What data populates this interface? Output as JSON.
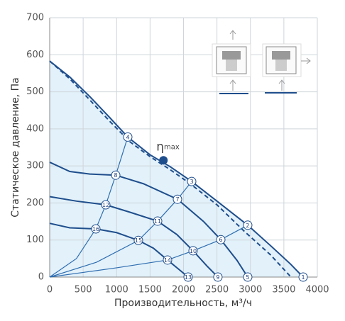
{
  "chart_data": {
    "type": "line",
    "xlabel": "Производительность, м³/ч",
    "ylabel": "Статическое давление, Па",
    "xlim": [
      0,
      4000
    ],
    "ylim": [
      0,
      700
    ],
    "xticks": [
      0,
      500,
      1000,
      1500,
      2000,
      2500,
      3000,
      3500,
      4000
    ],
    "yticks": [
      0,
      100,
      200,
      300,
      400,
      500,
      600,
      700
    ],
    "grid": true,
    "fill_color": "#e2f1fa",
    "series": [
      {
        "color": "#1f4e8c",
        "style": "solid",
        "fill": true,
        "x": [
          0,
          300,
          600,
          900,
          1167,
          1500,
          1800,
          2122,
          2500,
          2960,
          3300,
          3600,
          3788
        ],
        "values": [
          583,
          540,
          487,
          430,
          378,
          330,
          298,
          258,
          205,
          140,
          85,
          35,
          0
        ]
      },
      {
        "color": "#1f4e8c",
        "style": "dashed",
        "x": [
          0,
          300,
          600,
          900,
          1200,
          1500,
          1800,
          2100,
          2500,
          2900,
          3300,
          3607
        ],
        "values": [
          583,
          535,
          478,
          420,
          365,
          325,
          290,
          252,
          195,
          125,
          60,
          0
        ]
      },
      {
        "color": "#1f4e8c",
        "style": "solid",
        "x": [
          0,
          300,
          600,
          987,
          1400,
          1910,
          2300,
          2557,
          2800,
          2960
        ],
        "values": [
          310,
          285,
          278,
          275,
          252,
          210,
          150,
          101,
          45,
          0
        ]
      },
      {
        "color": "#1f4e8c",
        "style": "solid",
        "x": [
          0,
          400,
          838,
          1200,
          1613,
          1900,
          2143,
          2350,
          2514
        ],
        "values": [
          217,
          205,
          195,
          175,
          151,
          115,
          71,
          30,
          0
        ]
      },
      {
        "color": "#1f4e8c",
        "style": "solid",
        "x": [
          0,
          300,
          690,
          1000,
          1326,
          1550,
          1761,
          1950,
          2069
        ],
        "values": [
          145,
          133,
          130,
          120,
          99,
          78,
          46,
          18,
          0
        ]
      },
      {
        "color": "#2f6db0",
        "style": "thin",
        "x": [
          0,
          400,
          690,
          838,
          987,
          1167
        ],
        "values": [
          0,
          50,
          130,
          195,
          275,
          378
        ]
      },
      {
        "color": "#2f6db0",
        "style": "thin",
        "x": [
          0,
          700,
          1326,
          1613,
          1910,
          2122
        ],
        "values": [
          0,
          40,
          99,
          151,
          210,
          258
        ]
      },
      {
        "color": "#2f6db0",
        "style": "thin",
        "x": [
          0,
          1000,
          1761,
          2143,
          2557,
          2960
        ],
        "values": [
          0,
          25,
          46,
          71,
          101,
          140
        ]
      }
    ],
    "points": [
      {
        "label": "1",
        "x": 3788,
        "y": 0
      },
      {
        "label": "2",
        "x": 2960,
        "y": 140
      },
      {
        "label": "3",
        "x": 2122,
        "y": 258
      },
      {
        "label": "4",
        "x": 1167,
        "y": 378
      },
      {
        "label": "5",
        "x": 2960,
        "y": 0
      },
      {
        "label": "6",
        "x": 2557,
        "y": 101
      },
      {
        "label": "7",
        "x": 1910,
        "y": 210
      },
      {
        "label": "8",
        "x": 987,
        "y": 275
      },
      {
        "label": "9",
        "x": 2514,
        "y": 0
      },
      {
        "label": "10",
        "x": 2143,
        "y": 71
      },
      {
        "label": "11",
        "x": 1613,
        "y": 151
      },
      {
        "label": "12",
        "x": 838,
        "y": 195
      },
      {
        "label": "13",
        "x": 2069,
        "y": 0
      },
      {
        "label": "14",
        "x": 1761,
        "y": 46
      },
      {
        "label": "15",
        "x": 1326,
        "y": 99
      },
      {
        "label": "16",
        "x": 690,
        "y": 130
      }
    ],
    "annotation": {
      "text": "η",
      "sub": "max",
      "x": 1700,
      "y": 315,
      "color": "#1f4e8c"
    }
  }
}
